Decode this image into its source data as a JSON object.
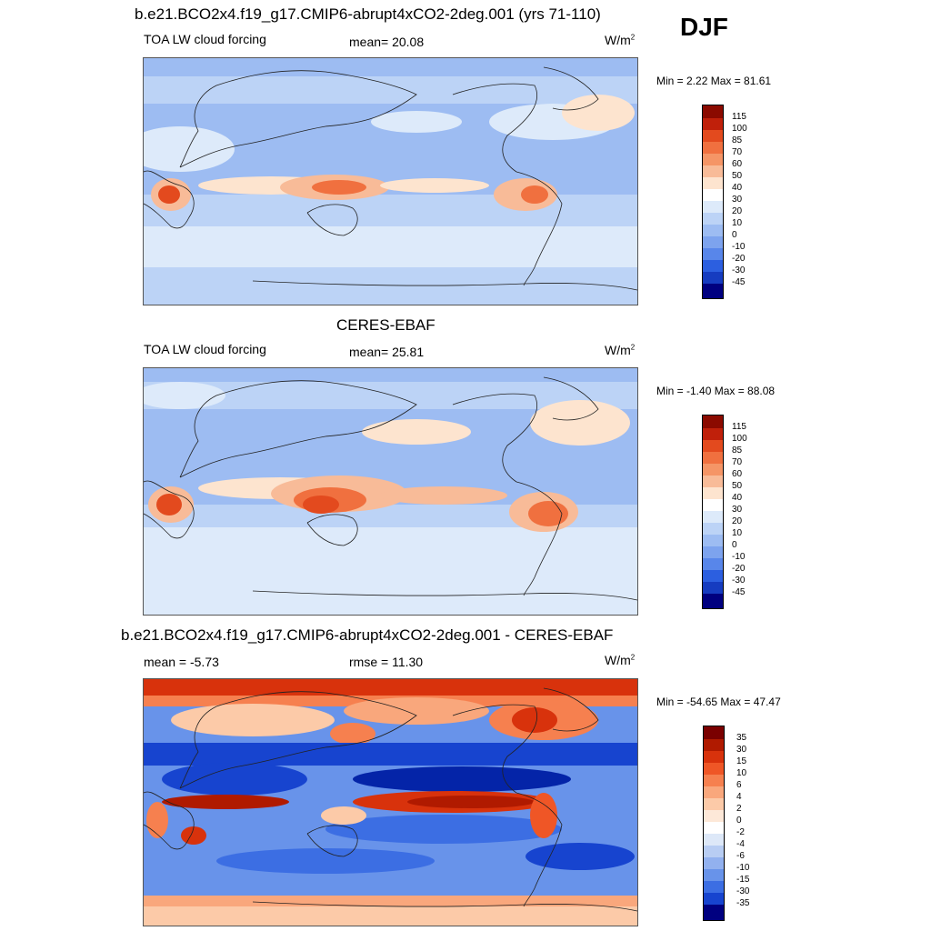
{
  "season": "DJF",
  "panels": [
    {
      "title": "b.e21.BCO2x4.f19_g17.CMIP6-abrupt4xCO2-2deg.001 (yrs 71-110)",
      "left_label": "TOA LW cloud forcing",
      "mid_label": "mean=  20.08",
      "units_base": "W/m",
      "units_sup": "2",
      "minmax": "Min =   2.22 Max =  81.61",
      "colorbar_labels": [
        "115",
        "100",
        "85",
        "70",
        "60",
        "50",
        "40",
        "30",
        "20",
        "10",
        "0",
        "-10",
        "-20",
        "-30",
        "-45"
      ]
    },
    {
      "title": "CERES-EBAF",
      "left_label": "TOA LW cloud forcing",
      "mid_label": "mean=  25.81",
      "units_base": "W/m",
      "units_sup": "2",
      "minmax": "Min =  -1.40 Max =  88.08",
      "colorbar_labels": [
        "115",
        "100",
        "85",
        "70",
        "60",
        "50",
        "40",
        "30",
        "20",
        "10",
        "0",
        "-10",
        "-20",
        "-30",
        "-45"
      ]
    },
    {
      "title": "b.e21.BCO2x4.f19_g17.CMIP6-abrupt4xCO2-2deg.001 - CERES-EBAF",
      "left_label": "mean =  -5.73",
      "mid_label": "rmse =  11.30",
      "units_base": "W/m",
      "units_sup": "2",
      "minmax": "Min = -54.65 Max =  47.47",
      "colorbar_labels": [
        "35",
        "30",
        "15",
        "10",
        "6",
        "4",
        "2",
        "0",
        "-2",
        "-4",
        "-6",
        "-10",
        "-15",
        "-30",
        "-35"
      ]
    }
  ],
  "colors": {
    "abs_scale": [
      "#8b0a00",
      "#c0200a",
      "#e34a1e",
      "#f0703f",
      "#f59566",
      "#f8bb98",
      "#fde4cf",
      "#ddeafa",
      "#bcd3f6",
      "#9dbcf2",
      "#7da3ee",
      "#5886ea",
      "#2c5fe0",
      "#163cc0",
      "#001c8c",
      "#000080"
    ],
    "diff_scale": [
      "#7a0000",
      "#b01a00",
      "#d8320c",
      "#ef5626",
      "#f6804f",
      "#f9a77c",
      "#fccaa8",
      "#fde8d8",
      "#dde8f8",
      "#b8cdf3",
      "#92b1ef",
      "#6893ea",
      "#3c6ee3",
      "#1744cf",
      "#0424a8",
      "#000080"
    ],
    "land_line": "#222222"
  }
}
